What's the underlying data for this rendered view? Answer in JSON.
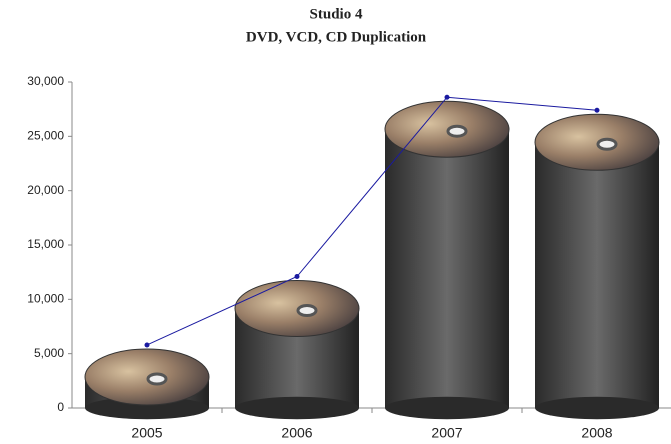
{
  "chart_data": {
    "type": "line",
    "title": "Studio 4",
    "subtitle": "DVD, VCD, CD Duplication",
    "categories": [
      "2005",
      "2006",
      "2007",
      "2008"
    ],
    "series": [
      {
        "name": "Duplication",
        "color": "#1a1aa0",
        "values": [
          5800,
          12100,
          28600,
          27400
        ]
      }
    ],
    "ylim": [
      0,
      30000
    ],
    "yticks": [
      0,
      {
        "value": 5000,
        "label": "5,000"
      },
      {
        "value": 10000,
        "label": "10,000"
      },
      {
        "value": 15000,
        "label": "15,000"
      },
      {
        "value": 20000,
        "label": "20,000"
      },
      {
        "value": 25000,
        "label": "25,000"
      },
      {
        "value": 30000,
        "label": "30,000"
      }
    ],
    "grid": false
  }
}
